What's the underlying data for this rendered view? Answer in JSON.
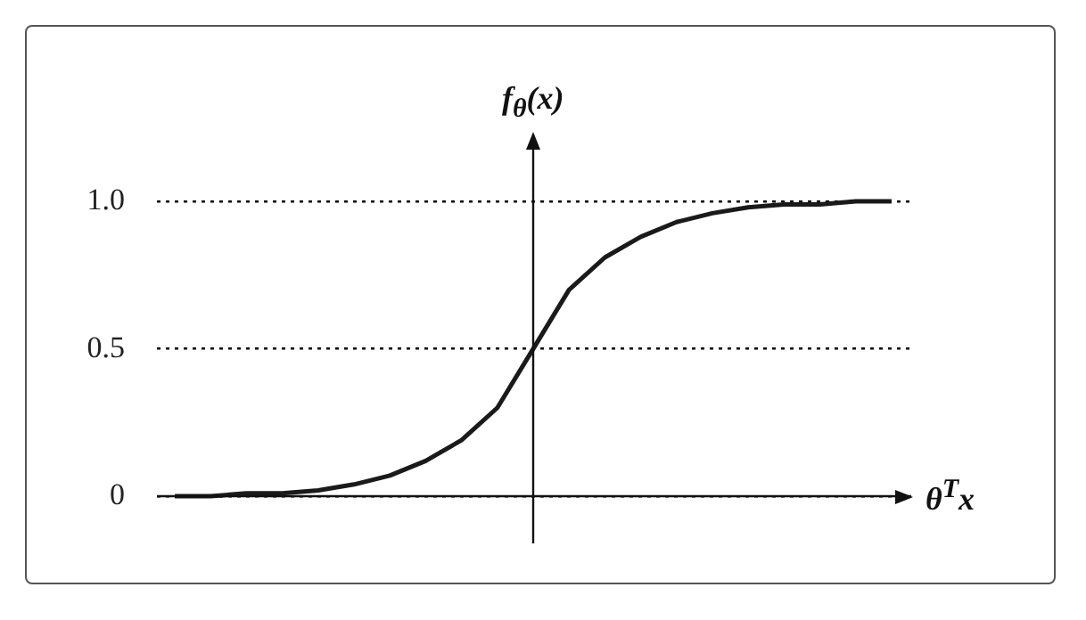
{
  "chart_data": {
    "type": "line",
    "xlabel": "θ$^{T}$x",
    "ylabel": "f$_{θ}$(x)",
    "categories": [
      null,
      null,
      null,
      null,
      null,
      null,
      null,
      null,
      null,
      null,
      null,
      null,
      null,
      null,
      null,
      null,
      null,
      null,
      null,
      null,
      null
    ],
    "series": [
      {
        "color": "#1a1a1a",
        "values": [
          0.0,
          0.0,
          0.01,
          0.01,
          0.02,
          0.04,
          0.07,
          0.12,
          0.19,
          0.3,
          0.5,
          0.7,
          0.81,
          0.88,
          0.93,
          0.96,
          0.98,
          0.99,
          0.99,
          1.0,
          1.0
        ]
      }
    ],
    "ylim": [
      -0.16,
      1.23
    ],
    "yticks": [
      0,
      0.5,
      {
        "value": 1,
        "label": "1.0"
      }
    ],
    "tick_labels": "y",
    "marker": "none",
    "line_style": "solid",
    "grid": "y",
    "legend": false
  }
}
